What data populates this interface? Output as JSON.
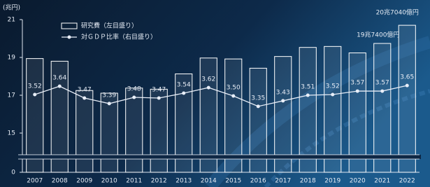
{
  "chart_data": {
    "type": "bar-line",
    "y_label": "(兆円)",
    "categories": [
      "2007",
      "2008",
      "2009",
      "2010",
      "2011",
      "2012",
      "2013",
      "2014",
      "2015",
      "2016",
      "2017",
      "2018",
      "2019",
      "2020",
      "2021",
      "2022"
    ],
    "series": [
      {
        "name": "研究費（左目盛り）",
        "type": "bar",
        "color": "#ffffff",
        "values": [
          18.94,
          18.8,
          17.25,
          17.11,
          17.38,
          17.32,
          18.13,
          18.97,
          18.92,
          18.43,
          19.05,
          19.53,
          19.58,
          19.24,
          19.74,
          20.7
        ]
      },
      {
        "name": "対ＧＤＰ比率（右目盛り）",
        "type": "line",
        "axis": "y2",
        "color": "#e8eef8",
        "values": [
          3.52,
          3.64,
          3.47,
          3.39,
          3.48,
          3.47,
          3.54,
          3.62,
          3.5,
          3.35,
          3.43,
          3.51,
          3.52,
          3.57,
          3.57,
          3.65
        ],
        "value_labels": [
          "3.52",
          "3.64",
          "3.47",
          "3.39",
          "3.48",
          "3.47",
          "3.54",
          "3.62",
          "3.50",
          "3.35",
          "3.43",
          "3.51",
          "3.52",
          "3.57",
          "3.57",
          "3.65"
        ]
      }
    ],
    "ylim": [
      0,
      21
    ],
    "yticks": [
      0,
      15,
      17,
      19,
      21
    ],
    "y_break": [
      0,
      15
    ],
    "y2lim": [
      2.4,
      4.6
    ],
    "annotations": [
      {
        "text": "20兆7040億円",
        "category": 15
      },
      {
        "text": "19兆7400億円",
        "category": 14
      }
    ]
  }
}
